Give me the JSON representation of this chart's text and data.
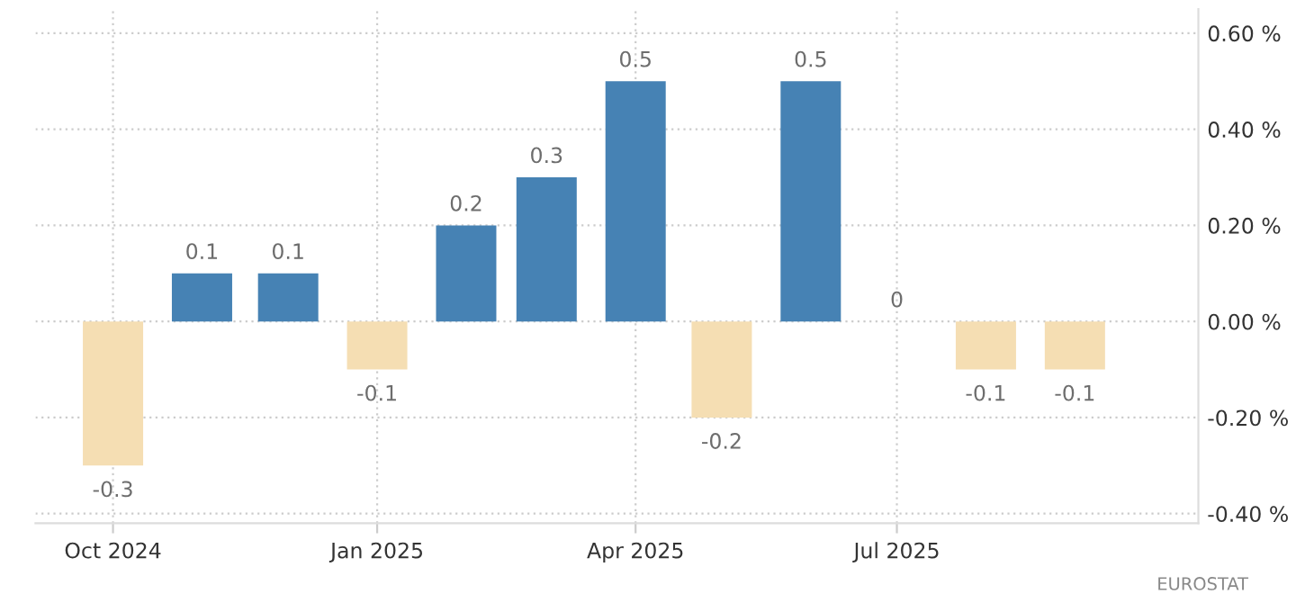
{
  "chart_data": {
    "type": "bar",
    "x": [
      "2024-10",
      "2024-11",
      "2024-12",
      "2025-01",
      "2025-02",
      "2025-03",
      "2025-04",
      "2025-05",
      "2025-06",
      "2025-07",
      "2025-08",
      "2025-09"
    ],
    "values": [
      -0.3,
      0.1,
      0.1,
      -0.1,
      0.2,
      0.3,
      0.5,
      -0.2,
      0.5,
      0,
      -0.1,
      -0.1
    ],
    "colors": [
      "#f5deb3",
      "#4682b4",
      "#4682b4",
      "#f5deb3",
      "#4682b4",
      "#4682b4",
      "#4682b4",
      "#f5deb3",
      "#4682b4",
      "#4682b4",
      "#f5deb3",
      "#f5deb3"
    ],
    "data_labels": true,
    "xlim": [
      "2024-09-04",
      "2025-10-14"
    ],
    "xticks": [
      {
        "value": "2024-10",
        "label": "Oct 2024"
      },
      {
        "value": "2025-01",
        "label": "Jan 2025"
      },
      {
        "value": "2025-04",
        "label": "Apr 2025"
      },
      {
        "value": "2025-07",
        "label": "Jul 2025"
      }
    ],
    "ylim": [
      -0.42,
      0.65
    ],
    "yticks": [
      {
        "value": -0.4,
        "label": "-0.40 %"
      },
      {
        "value": -0.2,
        "label": "-0.20 %"
      },
      {
        "value": 0,
        "label": "0.00 %"
      },
      {
        "value": 0.2,
        "label": "0.20 %"
      },
      {
        "value": 0.4,
        "label": "0.40 %"
      },
      {
        "value": 0.6,
        "label": "0.60 %"
      }
    ],
    "grid": true,
    "annotations": [
      "EUROSTAT"
    ]
  }
}
